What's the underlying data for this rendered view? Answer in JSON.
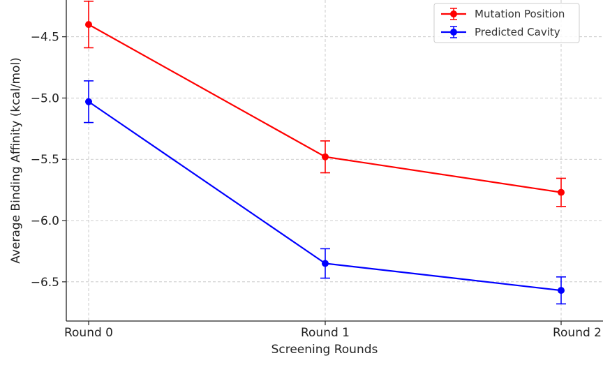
{
  "chart_data": {
    "type": "line",
    "title": "",
    "xlabel": "Screening Rounds",
    "ylabel": "Average Binding Affinity (kcal/mol)",
    "categories": [
      "Round 0",
      "Round 1",
      "Round 2"
    ],
    "yticks": [
      -4.5,
      -5.0,
      -5.5,
      -6.0,
      -6.5
    ],
    "ytick_labels": [
      "−4.5",
      "−5.0",
      "−5.5",
      "−6.0",
      "−6.5"
    ],
    "ylim": [
      -6.82,
      -4.2
    ],
    "grid": true,
    "legend_position": "top-right",
    "series": [
      {
        "name": "Mutation Position",
        "color": "#ff0000",
        "values": [
          -4.4,
          -5.48,
          -5.77
        ],
        "errors": [
          0.19,
          0.13,
          0.115
        ]
      },
      {
        "name": "Predicted Cavity",
        "color": "#0000ff",
        "values": [
          -5.03,
          -6.35,
          -6.57
        ],
        "errors": [
          0.17,
          0.12,
          0.11
        ]
      }
    ]
  }
}
